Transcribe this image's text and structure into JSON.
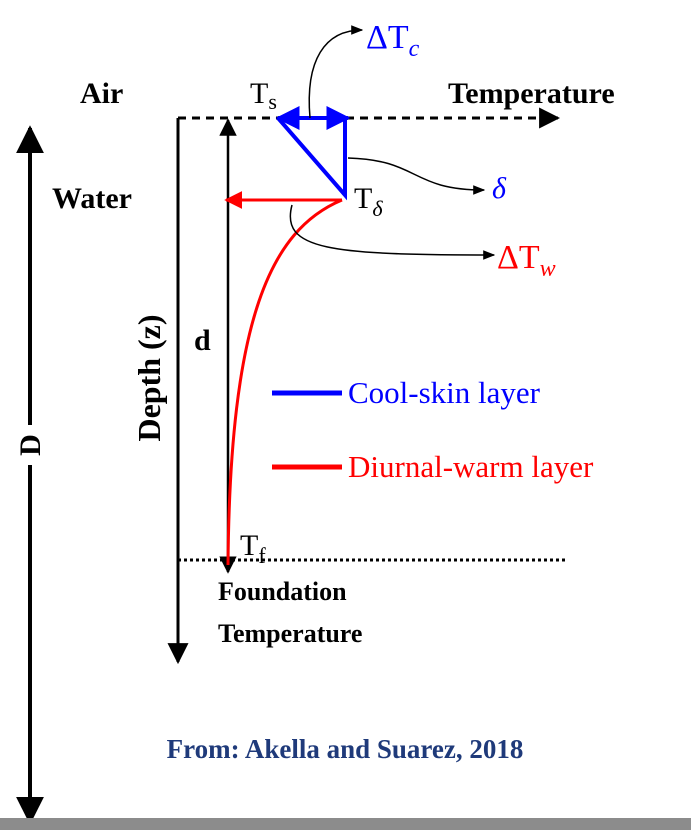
{
  "labels": {
    "delta_tc": {
      "base": "ΔT",
      "sub": "c"
    },
    "air": "Air",
    "ts": {
      "base": "T",
      "sub": "s"
    },
    "temperature_axis": "Temperature",
    "water": "Water",
    "t_delta": {
      "base": "T",
      "sub": "δ"
    },
    "delta": "δ",
    "delta_tw": {
      "base": "ΔT",
      "sub": "w"
    },
    "d": "d",
    "depth": "Depth (z)",
    "big_d": "D",
    "tf": {
      "base": "T",
      "sub": "f"
    },
    "foundation": [
      "Foundation",
      "Temperature"
    ]
  },
  "legend": [
    {
      "name": "Cool-skin layer",
      "color": "#0000ff"
    },
    {
      "name": "Diurnal-warm layer",
      "color": "#ff0000"
    }
  ],
  "source": "From: Akella and Suarez, 2018"
}
